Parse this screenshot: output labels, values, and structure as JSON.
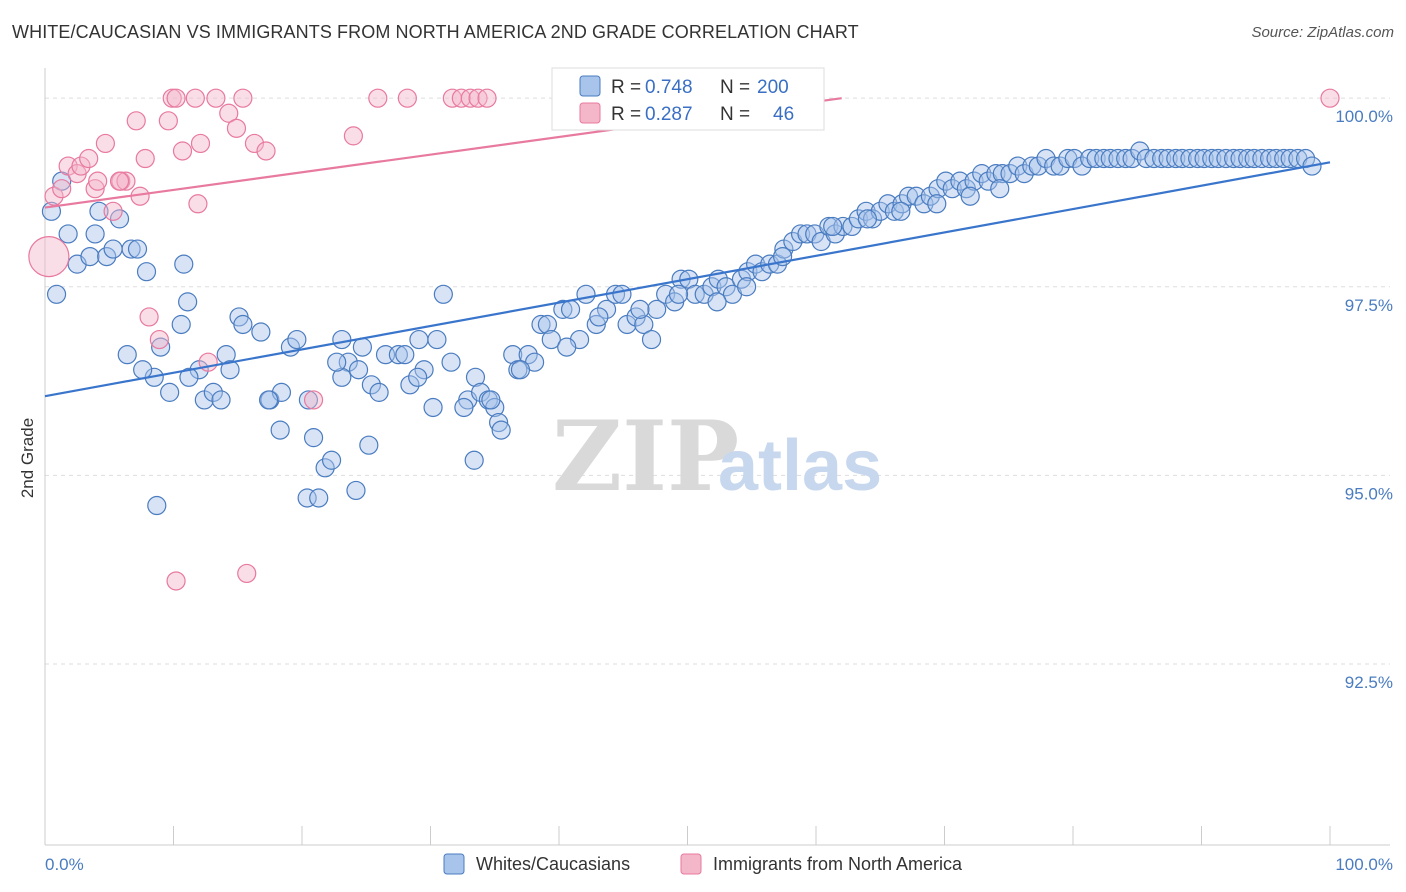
{
  "title": "WHITE/CAUCASIAN VS IMMIGRANTS FROM NORTH AMERICA 2ND GRADE CORRELATION CHART",
  "source": "Source: ZipAtlas.com",
  "watermark": {
    "zip": "ZIP",
    "atlas": "atlas"
  },
  "colors": {
    "blue": "#4a7cc0",
    "blue_fill": "#a8c4ea",
    "pink": "#e8799f",
    "pink_fill": "#f4b6c9",
    "grid": "#dddddd"
  },
  "legend": {
    "rows": [
      {
        "r_label": "R = ",
        "r_value": "0.748",
        "n_label": "N = ",
        "n_value": "200"
      },
      {
        "r_label": "R = ",
        "r_value": "0.287",
        "n_label": "N = ",
        "n_value": "46"
      }
    ]
  },
  "bottom_legend": [
    "Whites/Caucasians",
    "Immigrants from North America"
  ],
  "chart_data": {
    "type": "scatter",
    "title": "WHITE/CAUCASIAN VS IMMIGRANTS FROM NORTH AMERICA 2ND GRADE CORRELATION CHART",
    "xlabel": "",
    "ylabel": "2nd Grade",
    "xlim": [
      0,
      100
    ],
    "ylim": [
      90.1,
      100.4
    ],
    "x_ticks": [
      "0.0%",
      "100.0%"
    ],
    "y_ticks": [
      {
        "value": 100.0,
        "label": "100.0%"
      },
      {
        "value": 97.5,
        "label": "97.5%"
      },
      {
        "value": 95.0,
        "label": "95.0%"
      },
      {
        "value": 92.5,
        "label": "92.5%"
      }
    ],
    "grid": true,
    "legend_position": "top-center",
    "series": [
      {
        "name": "Whites/Caucasians",
        "r": 0.748,
        "n": 200,
        "trend": {
          "x": [
            0,
            100
          ],
          "y": [
            96.05,
            99.15
          ]
        },
        "points": [
          [
            0.5,
            98.5
          ],
          [
            1.3,
            98.9
          ],
          [
            1.8,
            98.2
          ],
          [
            0.9,
            97.4
          ],
          [
            2.5,
            97.8
          ],
          [
            3.5,
            97.9
          ],
          [
            3.9,
            98.2
          ],
          [
            4.2,
            98.5
          ],
          [
            5.8,
            98.4
          ],
          [
            4.8,
            97.9
          ],
          [
            5.3,
            98.0
          ],
          [
            6.7,
            98.0
          ],
          [
            7.2,
            98.0
          ],
          [
            7.9,
            97.7
          ],
          [
            6.4,
            96.6
          ],
          [
            8.5,
            96.3
          ],
          [
            9.0,
            96.7
          ],
          [
            10.6,
            97.0
          ],
          [
            10.8,
            97.8
          ],
          [
            11.1,
            97.3
          ],
          [
            12.0,
            96.4
          ],
          [
            12.4,
            96.0
          ],
          [
            13.1,
            96.1
          ],
          [
            14.1,
            96.6
          ],
          [
            15.1,
            97.1
          ],
          [
            15.4,
            97.0
          ],
          [
            16.8,
            96.9
          ],
          [
            17.5,
            96.0
          ],
          [
            18.4,
            96.1
          ],
          [
            19.1,
            96.7
          ],
          [
            19.6,
            96.8
          ],
          [
            20.5,
            96.0
          ],
          [
            20.9,
            95.5
          ],
          [
            20.4,
            94.7
          ],
          [
            21.8,
            95.1
          ],
          [
            22.3,
            95.2
          ],
          [
            21.3,
            94.7
          ],
          [
            23.1,
            96.8
          ],
          [
            23.6,
            96.5
          ],
          [
            23.1,
            96.3
          ],
          [
            24.4,
            96.4
          ],
          [
            24.7,
            96.7
          ],
          [
            25.4,
            96.2
          ],
          [
            26.5,
            96.6
          ],
          [
            27.5,
            96.6
          ],
          [
            28.0,
            96.6
          ],
          [
            28.4,
            96.2
          ],
          [
            29.1,
            96.8
          ],
          [
            29.5,
            96.4
          ],
          [
            30.2,
            95.9
          ],
          [
            30.5,
            96.8
          ],
          [
            31.0,
            97.4
          ],
          [
            31.6,
            96.5
          ],
          [
            32.9,
            96.0
          ],
          [
            33.5,
            96.3
          ],
          [
            32.6,
            95.9
          ],
          [
            33.9,
            96.1
          ],
          [
            34.5,
            96.0
          ],
          [
            35.0,
            95.9
          ],
          [
            35.3,
            95.7
          ],
          [
            36.4,
            96.6
          ],
          [
            36.8,
            96.4
          ],
          [
            37.6,
            96.6
          ],
          [
            38.1,
            96.5
          ],
          [
            38.6,
            97.0
          ],
          [
            39.1,
            97.0
          ],
          [
            39.4,
            96.8
          ],
          [
            40.3,
            97.2
          ],
          [
            40.9,
            97.2
          ],
          [
            41.6,
            96.8
          ],
          [
            42.1,
            97.4
          ],
          [
            42.9,
            97.0
          ],
          [
            43.7,
            97.2
          ],
          [
            44.4,
            97.4
          ],
          [
            44.9,
            97.4
          ],
          [
            45.3,
            97.0
          ],
          [
            46.0,
            97.1
          ],
          [
            46.6,
            97.0
          ],
          [
            47.2,
            96.8
          ],
          [
            47.6,
            97.2
          ],
          [
            48.3,
            97.4
          ],
          [
            49.0,
            97.3
          ],
          [
            49.5,
            97.6
          ],
          [
            50.1,
            97.6
          ],
          [
            50.6,
            97.4
          ],
          [
            51.3,
            97.4
          ],
          [
            51.9,
            97.5
          ],
          [
            52.4,
            97.6
          ],
          [
            53.0,
            97.5
          ],
          [
            53.5,
            97.4
          ],
          [
            54.2,
            97.6
          ],
          [
            54.7,
            97.7
          ],
          [
            55.3,
            97.8
          ],
          [
            55.8,
            97.7
          ],
          [
            56.4,
            97.8
          ],
          [
            57.0,
            97.8
          ],
          [
            57.5,
            98.0
          ],
          [
            58.2,
            98.1
          ],
          [
            58.8,
            98.2
          ],
          [
            59.3,
            98.2
          ],
          [
            59.9,
            98.2
          ],
          [
            60.4,
            98.1
          ],
          [
            61.0,
            98.3
          ],
          [
            61.5,
            98.2
          ],
          [
            62.1,
            98.3
          ],
          [
            62.8,
            98.3
          ],
          [
            63.3,
            98.4
          ],
          [
            63.9,
            98.5
          ],
          [
            64.4,
            98.4
          ],
          [
            65.0,
            98.5
          ],
          [
            65.6,
            98.6
          ],
          [
            66.1,
            98.5
          ],
          [
            66.7,
            98.6
          ],
          [
            67.2,
            98.7
          ],
          [
            67.8,
            98.7
          ],
          [
            68.4,
            98.6
          ],
          [
            68.9,
            98.7
          ],
          [
            69.5,
            98.8
          ],
          [
            70.1,
            98.9
          ],
          [
            70.6,
            98.8
          ],
          [
            71.2,
            98.9
          ],
          [
            71.7,
            98.8
          ],
          [
            72.3,
            98.9
          ],
          [
            72.9,
            99.0
          ],
          [
            73.4,
            98.9
          ],
          [
            74.0,
            99.0
          ],
          [
            74.5,
            99.0
          ],
          [
            75.1,
            99.0
          ],
          [
            75.7,
            99.1
          ],
          [
            76.2,
            99.0
          ],
          [
            76.8,
            99.1
          ],
          [
            77.3,
            99.1
          ],
          [
            77.9,
            99.2
          ],
          [
            78.5,
            99.1
          ],
          [
            79.0,
            99.1
          ],
          [
            79.6,
            99.2
          ],
          [
            80.1,
            99.2
          ],
          [
            80.7,
            99.1
          ],
          [
            81.3,
            99.2
          ],
          [
            81.8,
            99.2
          ],
          [
            82.4,
            99.2
          ],
          [
            82.9,
            99.2
          ],
          [
            83.5,
            99.2
          ],
          [
            84.1,
            99.2
          ],
          [
            84.6,
            99.2
          ],
          [
            85.2,
            99.3
          ],
          [
            85.7,
            99.2
          ],
          [
            86.3,
            99.2
          ],
          [
            86.9,
            99.2
          ],
          [
            87.4,
            99.2
          ],
          [
            88.0,
            99.2
          ],
          [
            88.5,
            99.2
          ],
          [
            89.1,
            99.2
          ],
          [
            89.7,
            99.2
          ],
          [
            90.2,
            99.2
          ],
          [
            90.8,
            99.2
          ],
          [
            91.3,
            99.2
          ],
          [
            91.9,
            99.2
          ],
          [
            92.5,
            99.2
          ],
          [
            93.0,
            99.2
          ],
          [
            93.6,
            99.2
          ],
          [
            94.1,
            99.2
          ],
          [
            94.7,
            99.2
          ],
          [
            95.3,
            99.2
          ],
          [
            95.8,
            99.2
          ],
          [
            96.4,
            99.2
          ],
          [
            96.9,
            99.2
          ],
          [
            97.5,
            99.2
          ],
          [
            98.1,
            99.2
          ],
          [
            98.6,
            99.1
          ],
          [
            74.3,
            98.8
          ],
          [
            72.0,
            98.7
          ],
          [
            69.4,
            98.6
          ],
          [
            66.6,
            98.5
          ],
          [
            64.0,
            98.4
          ],
          [
            61.3,
            98.3
          ],
          [
            57.4,
            97.9
          ],
          [
            54.6,
            97.5
          ],
          [
            52.3,
            97.3
          ],
          [
            49.3,
            97.4
          ],
          [
            46.3,
            97.2
          ],
          [
            43.1,
            97.1
          ],
          [
            40.6,
            96.7
          ],
          [
            37.0,
            96.4
          ],
          [
            34.7,
            96.0
          ],
          [
            29.0,
            96.3
          ],
          [
            26.0,
            96.1
          ],
          [
            22.7,
            96.5
          ],
          [
            17.4,
            96.0
          ],
          [
            14.4,
            96.4
          ],
          [
            13.7,
            96.0
          ],
          [
            11.2,
            96.3
          ],
          [
            9.7,
            96.1
          ],
          [
            7.6,
            96.4
          ],
          [
            18.3,
            95.6
          ],
          [
            25.2,
            95.4
          ],
          [
            33.4,
            95.2
          ],
          [
            35.5,
            95.6
          ],
          [
            24.2,
            94.8
          ],
          [
            8.7,
            94.6
          ]
        ]
      },
      {
        "name": "Immigrants from North America",
        "r": 0.287,
        "n": 46,
        "trend": {
          "x": [
            0,
            62
          ],
          "y": [
            98.55,
            100.0
          ]
        },
        "points": [
          [
            0.3,
            97.9
          ],
          [
            0.7,
            98.7
          ],
          [
            1.3,
            98.8
          ],
          [
            1.8,
            99.1
          ],
          [
            2.5,
            99.0
          ],
          [
            2.8,
            99.1
          ],
          [
            3.4,
            99.2
          ],
          [
            3.9,
            98.8
          ],
          [
            4.1,
            98.9
          ],
          [
            4.7,
            99.4
          ],
          [
            5.3,
            98.5
          ],
          [
            5.9,
            98.9
          ],
          [
            6.3,
            98.9
          ],
          [
            7.1,
            99.7
          ],
          [
            7.4,
            98.7
          ],
          [
            7.8,
            99.2
          ],
          [
            8.1,
            97.1
          ],
          [
            8.9,
            96.8
          ],
          [
            9.6,
            99.7
          ],
          [
            9.9,
            100.0
          ],
          [
            10.2,
            100.0
          ],
          [
            10.7,
            99.3
          ],
          [
            11.7,
            100.0
          ],
          [
            11.9,
            98.6
          ],
          [
            12.1,
            99.4
          ],
          [
            12.7,
            96.5
          ],
          [
            13.3,
            100.0
          ],
          [
            14.3,
            99.8
          ],
          [
            14.9,
            99.6
          ],
          [
            15.4,
            100.0
          ],
          [
            16.3,
            99.4
          ],
          [
            17.2,
            99.3
          ],
          [
            20.9,
            96.0
          ],
          [
            24.0,
            99.5
          ],
          [
            25.9,
            100.0
          ],
          [
            28.2,
            100.0
          ],
          [
            31.7,
            100.0
          ],
          [
            32.4,
            100.0
          ],
          [
            33.1,
            100.0
          ],
          [
            33.7,
            100.0
          ],
          [
            34.4,
            100.0
          ],
          [
            42.4,
            100.0
          ],
          [
            100.0,
            100.0
          ],
          [
            10.2,
            93.6
          ],
          [
            15.7,
            93.7
          ],
          [
            5.8,
            98.9
          ]
        ]
      }
    ]
  }
}
